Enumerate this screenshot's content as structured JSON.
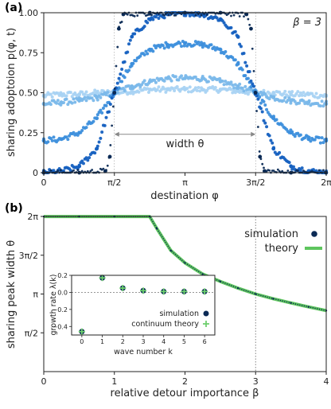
{
  "chart_data": [
    {
      "panel_label": "(a)",
      "type": "scatter",
      "annotation": "β = 3",
      "xlabel": "destination φ",
      "ylabel": "sharing adoptoion p(φ, t)",
      "xlim": [
        0,
        6.2832
      ],
      "ylim": [
        0,
        1
      ],
      "xtick_labels": [
        "0",
        "π/2",
        "π",
        "3π/2",
        "2π"
      ],
      "ytick_labels": [
        "0",
        "0.25",
        "0.50",
        "0.75",
        "1.00"
      ],
      "ytick_values": [
        0,
        0.25,
        0.5,
        0.75,
        1.0
      ],
      "width_label": "width θ",
      "width_arrow": {
        "from": 1.5708,
        "to": 4.7124,
        "y": 0.24
      },
      "threshold_x": [
        1.5708,
        4.7124
      ],
      "series": [
        {
          "color": "#a9d3f3",
          "points": [
            [
              0.0,
              0.48
            ],
            [
              0.39,
              0.49
            ],
            [
              0.79,
              0.49
            ],
            [
              1.18,
              0.5
            ],
            [
              1.57,
              0.5
            ],
            [
              1.96,
              0.51
            ],
            [
              2.36,
              0.52
            ],
            [
              2.75,
              0.52
            ],
            [
              3.14,
              0.52
            ],
            [
              3.53,
              0.52
            ],
            [
              3.93,
              0.52
            ],
            [
              4.32,
              0.51
            ],
            [
              4.71,
              0.5
            ],
            [
              5.11,
              0.5
            ],
            [
              5.5,
              0.49
            ],
            [
              5.89,
              0.49
            ],
            [
              6.28,
              0.48
            ]
          ]
        },
        {
          "color": "#7ab8ea",
          "points": [
            [
              0.0,
              0.43
            ],
            [
              0.39,
              0.44
            ],
            [
              0.79,
              0.45
            ],
            [
              1.18,
              0.47
            ],
            [
              1.57,
              0.5
            ],
            [
              1.96,
              0.54
            ],
            [
              2.36,
              0.57
            ],
            [
              2.75,
              0.59
            ],
            [
              3.14,
              0.59
            ],
            [
              3.53,
              0.59
            ],
            [
              3.93,
              0.57
            ],
            [
              4.32,
              0.54
            ],
            [
              4.71,
              0.5
            ],
            [
              5.11,
              0.47
            ],
            [
              5.5,
              0.45
            ],
            [
              5.89,
              0.44
            ],
            [
              6.28,
              0.43
            ]
          ]
        },
        {
          "color": "#3d8fdc",
          "points": [
            [
              0.0,
              0.2
            ],
            [
              0.39,
              0.21
            ],
            [
              0.79,
              0.25
            ],
            [
              1.18,
              0.34
            ],
            [
              1.57,
              0.5
            ],
            [
              1.96,
              0.68
            ],
            [
              2.36,
              0.77
            ],
            [
              2.75,
              0.8
            ],
            [
              3.14,
              0.81
            ],
            [
              3.53,
              0.8
            ],
            [
              3.93,
              0.77
            ],
            [
              4.32,
              0.68
            ],
            [
              4.71,
              0.5
            ],
            [
              5.11,
              0.34
            ],
            [
              5.5,
              0.25
            ],
            [
              5.89,
              0.21
            ],
            [
              6.28,
              0.2
            ]
          ]
        },
        {
          "color": "#1560c0",
          "points": [
            [
              0.0,
              0.0
            ],
            [
              0.39,
              0.01
            ],
            [
              0.79,
              0.04
            ],
            [
              1.18,
              0.15
            ],
            [
              1.57,
              0.5
            ],
            [
              1.96,
              0.85
            ],
            [
              2.36,
              0.96
            ],
            [
              2.75,
              0.99
            ],
            [
              3.14,
              1.0
            ],
            [
              3.53,
              0.99
            ],
            [
              3.93,
              0.96
            ],
            [
              4.32,
              0.85
            ],
            [
              4.71,
              0.5
            ],
            [
              5.11,
              0.15
            ],
            [
              5.5,
              0.04
            ],
            [
              5.89,
              0.01
            ],
            [
              6.28,
              0.0
            ]
          ]
        },
        {
          "color": "#0b2a55",
          "points": [
            [
              0.0,
              0.0
            ],
            [
              0.79,
              0.0
            ],
            [
              1.37,
              0.01
            ],
            [
              1.47,
              0.1
            ],
            [
              1.57,
              0.5
            ],
            [
              1.67,
              0.9
            ],
            [
              1.77,
              0.99
            ],
            [
              2.36,
              1.0
            ],
            [
              3.14,
              1.0
            ],
            [
              3.93,
              1.0
            ],
            [
              4.51,
              0.99
            ],
            [
              4.61,
              0.9
            ],
            [
              4.71,
              0.5
            ],
            [
              4.81,
              0.1
            ],
            [
              4.91,
              0.01
            ],
            [
              5.5,
              0.0
            ],
            [
              6.28,
              0.0
            ]
          ]
        }
      ]
    },
    {
      "panel_label": "(b)",
      "type": "line",
      "xlabel": "relative detour importance β",
      "ylabel": "sharing peak width θ",
      "xlim": [
        0,
        4
      ],
      "ylim": [
        0,
        6.2832
      ],
      "xtick_labels": [
        "0",
        "1",
        "2",
        "3",
        "4"
      ],
      "ytick_labels": [
        "π/2",
        "π",
        "3π/2",
        "2π"
      ],
      "ytick_values": [
        1.5708,
        3.1416,
        4.7124,
        6.2832
      ],
      "vline_x": 3,
      "legend": {
        "position": "top-right",
        "entries": [
          "simulation",
          "theory"
        ]
      },
      "series": [
        {
          "name": "simulation",
          "color": "#0b2a55",
          "points": [
            [
              0.0,
              6.28
            ],
            [
              0.5,
              6.28
            ],
            [
              1.0,
              6.28
            ],
            [
              1.5,
              6.28
            ],
            [
              1.6,
              5.8
            ],
            [
              1.8,
              4.9
            ],
            [
              2.0,
              4.4
            ],
            [
              2.25,
              3.95
            ],
            [
              2.5,
              3.65
            ],
            [
              2.75,
              3.38
            ],
            [
              3.0,
              3.14
            ],
            [
              3.25,
              2.95
            ],
            [
              3.5,
              2.78
            ],
            [
              3.75,
              2.62
            ],
            [
              4.0,
              2.47
            ]
          ]
        },
        {
          "name": "theory",
          "color": "#5ec55e",
          "points": [
            [
              0.0,
              6.28
            ],
            [
              0.5,
              6.28
            ],
            [
              1.0,
              6.28
            ],
            [
              1.5,
              6.28
            ],
            [
              1.6,
              5.8
            ],
            [
              1.8,
              4.9
            ],
            [
              2.0,
              4.4
            ],
            [
              2.25,
              3.95
            ],
            [
              2.5,
              3.65
            ],
            [
              2.75,
              3.38
            ],
            [
              3.0,
              3.14
            ],
            [
              3.25,
              2.95
            ],
            [
              3.5,
              2.78
            ],
            [
              3.75,
              2.62
            ],
            [
              4.0,
              2.47
            ]
          ]
        }
      ]
    },
    {
      "panel_label": "inset",
      "type": "scatter",
      "xlabel": "wave number k",
      "ylabel": "growth rate λ(k)",
      "xlim": [
        -0.5,
        6.5
      ],
      "ylim": [
        -0.5,
        0.2
      ],
      "xtick_labels": [
        "0",
        "1",
        "2",
        "3",
        "4",
        "5",
        "6"
      ],
      "ytick_labels": [
        "0.2",
        "0.0",
        "−0.2",
        "−0.4"
      ],
      "ytick_values": [
        0.2,
        0.0,
        -0.2,
        -0.4
      ],
      "legend": {
        "position": "bottom-right",
        "entries": [
          "simulation",
          "continuum theory"
        ]
      },
      "series": [
        {
          "name": "simulation",
          "color": "#0b2a55",
          "x": [
            0,
            1,
            2,
            3,
            4,
            5,
            6
          ],
          "y": [
            -0.46,
            0.17,
            0.05,
            0.02,
            0.01,
            0.01,
            0.01
          ]
        },
        {
          "name": "continuum theory",
          "color": "#6fd06f",
          "x": [
            0,
            1,
            2,
            3,
            4,
            5,
            6
          ],
          "y": [
            -0.46,
            0.17,
            0.05,
            0.02,
            0.01,
            0.01,
            0.01
          ]
        }
      ]
    }
  ]
}
